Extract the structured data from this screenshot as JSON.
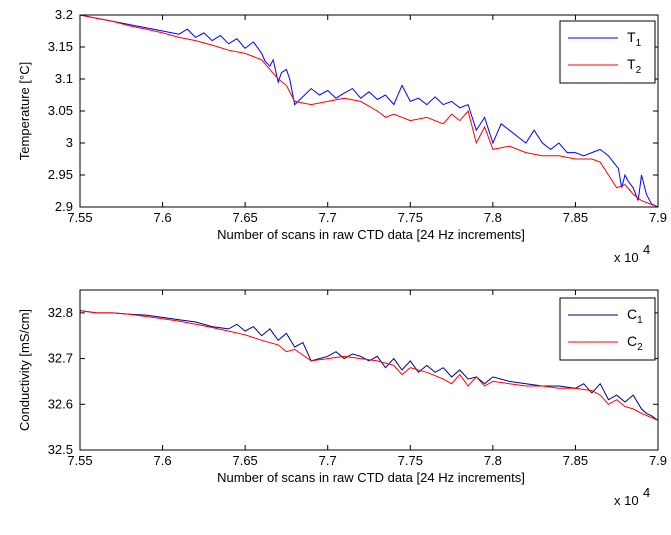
{
  "chart_data": [
    {
      "type": "line",
      "xlabel": "Number of scans in raw CTD data [24 Hz increments]",
      "ylabel": "Temperature [°C]",
      "x_multiplier_label": "x 10",
      "x_multiplier_exp": "4",
      "xlim": [
        7.55,
        7.9
      ],
      "ylim": [
        2.9,
        3.2
      ],
      "xticks": [
        "7.55",
        "7.6",
        "7.65",
        "7.7",
        "7.75",
        "7.8",
        "7.85",
        "7.9"
      ],
      "yticks": [
        "2.9",
        "2.95",
        "3",
        "3.05",
        "3.1",
        "3.15",
        "3.2"
      ],
      "legend_position": "top-right",
      "series": [
        {
          "name_main": "T",
          "name_sub": "1",
          "color": "#0000ff",
          "x": [
            7.55,
            7.56,
            7.57,
            7.58,
            7.59,
            7.6,
            7.61,
            7.615,
            7.62,
            7.625,
            7.63,
            7.635,
            7.64,
            7.645,
            7.65,
            7.655,
            7.66,
            7.662,
            7.665,
            7.667,
            7.67,
            7.672,
            7.675,
            7.677,
            7.68,
            7.69,
            7.695,
            7.7,
            7.705,
            7.71,
            7.715,
            7.72,
            7.725,
            7.73,
            7.735,
            7.74,
            7.745,
            7.75,
            7.755,
            7.76,
            7.765,
            7.77,
            7.775,
            7.78,
            7.785,
            7.79,
            7.795,
            7.8,
            7.805,
            7.81,
            7.815,
            7.82,
            7.825,
            7.83,
            7.835,
            7.84,
            7.845,
            7.85,
            7.855,
            7.86,
            7.865,
            7.87,
            7.873,
            7.876,
            7.878,
            7.88,
            7.882,
            7.885,
            7.888,
            7.89,
            7.893,
            7.896,
            7.9
          ],
          "y": [
            3.2,
            3.195,
            3.19,
            3.185,
            3.18,
            3.175,
            3.17,
            3.178,
            3.165,
            3.172,
            3.16,
            3.168,
            3.155,
            3.163,
            3.148,
            3.158,
            3.14,
            3.128,
            3.12,
            3.13,
            3.095,
            3.11,
            3.115,
            3.1,
            3.06,
            3.085,
            3.075,
            3.082,
            3.07,
            3.078,
            3.085,
            3.07,
            3.08,
            3.068,
            3.075,
            3.06,
            3.09,
            3.065,
            3.07,
            3.06,
            3.072,
            3.06,
            3.065,
            3.055,
            3.06,
            3.02,
            3.04,
            3.0,
            3.03,
            3.02,
            3.01,
            3.0,
            3.02,
            3.0,
            2.99,
            3.0,
            2.985,
            2.985,
            2.98,
            2.985,
            2.99,
            2.98,
            2.97,
            2.96,
            2.93,
            2.95,
            2.94,
            2.93,
            2.91,
            2.95,
            2.92,
            2.905,
            2.9
          ]
        },
        {
          "name_main": "T",
          "name_sub": "2",
          "color": "#ff0000",
          "x": [
            7.55,
            7.56,
            7.57,
            7.58,
            7.59,
            7.6,
            7.61,
            7.62,
            7.63,
            7.64,
            7.65,
            7.66,
            7.665,
            7.67,
            7.675,
            7.68,
            7.69,
            7.7,
            7.71,
            7.72,
            7.73,
            7.735,
            7.74,
            7.75,
            7.76,
            7.77,
            7.775,
            7.78,
            7.785,
            7.79,
            7.795,
            7.8,
            7.81,
            7.82,
            7.83,
            7.84,
            7.85,
            7.86,
            7.865,
            7.87,
            7.875,
            7.88,
            7.885,
            7.89,
            7.9
          ],
          "y": [
            3.2,
            3.195,
            3.19,
            3.183,
            3.178,
            3.172,
            3.165,
            3.16,
            3.153,
            3.145,
            3.14,
            3.13,
            3.115,
            3.1,
            3.09,
            3.065,
            3.06,
            3.065,
            3.07,
            3.065,
            3.05,
            3.04,
            3.045,
            3.035,
            3.04,
            3.03,
            3.045,
            3.035,
            3.05,
            3.0,
            3.025,
            2.99,
            2.995,
            2.985,
            2.98,
            2.98,
            2.975,
            2.975,
            2.97,
            2.95,
            2.93,
            2.935,
            2.92,
            2.91,
            2.9
          ]
        }
      ]
    },
    {
      "type": "line",
      "xlabel": "Number of scans in raw CTD data [24 Hz increments]",
      "ylabel": "Conductivity [mS/cm]",
      "x_multiplier_label": "x 10",
      "x_multiplier_exp": "4",
      "xlim": [
        7.55,
        7.9
      ],
      "ylim": [
        32.5,
        32.85
      ],
      "xticks": [
        "7.55",
        "7.6",
        "7.65",
        "7.7",
        "7.75",
        "7.8",
        "7.85",
        "7.9"
      ],
      "yticks": [
        "32.5",
        "32.6",
        "32.7",
        "32.8"
      ],
      "legend_position": "top-right",
      "series": [
        {
          "name_main": "C",
          "name_sub": "1",
          "color": "#00008b",
          "x": [
            7.55,
            7.56,
            7.57,
            7.58,
            7.59,
            7.6,
            7.61,
            7.62,
            7.63,
            7.64,
            7.645,
            7.65,
            7.655,
            7.66,
            7.665,
            7.67,
            7.675,
            7.68,
            7.685,
            7.69,
            7.7,
            7.705,
            7.71,
            7.715,
            7.72,
            7.725,
            7.73,
            7.735,
            7.74,
            7.745,
            7.75,
            7.755,
            7.76,
            7.765,
            7.77,
            7.775,
            7.78,
            7.785,
            7.79,
            7.795,
            7.8,
            7.81,
            7.82,
            7.83,
            7.84,
            7.85,
            7.855,
            7.86,
            7.865,
            7.87,
            7.875,
            7.88,
            7.885,
            7.89,
            7.893,
            7.896,
            7.9
          ],
          "y": [
            32.805,
            32.8,
            32.8,
            32.797,
            32.795,
            32.79,
            32.785,
            32.78,
            32.77,
            32.765,
            32.775,
            32.76,
            32.77,
            32.75,
            32.765,
            32.74,
            32.755,
            32.725,
            32.735,
            32.695,
            32.705,
            32.715,
            32.7,
            32.71,
            32.705,
            32.695,
            32.705,
            32.68,
            32.7,
            32.675,
            32.695,
            32.67,
            32.685,
            32.67,
            32.68,
            32.66,
            32.675,
            32.655,
            32.66,
            32.645,
            32.66,
            32.65,
            32.645,
            32.64,
            32.64,
            32.635,
            32.645,
            32.625,
            32.645,
            32.61,
            32.62,
            32.605,
            32.62,
            32.59,
            32.58,
            32.575,
            32.565
          ]
        },
        {
          "name_main": "C",
          "name_sub": "2",
          "color": "#ff0000",
          "x": [
            7.55,
            7.56,
            7.57,
            7.58,
            7.59,
            7.6,
            7.61,
            7.62,
            7.63,
            7.64,
            7.65,
            7.66,
            7.67,
            7.675,
            7.68,
            7.69,
            7.7,
            7.71,
            7.72,
            7.73,
            7.74,
            7.745,
            7.75,
            7.76,
            7.77,
            7.775,
            7.78,
            7.785,
            7.79,
            7.795,
            7.8,
            7.81,
            7.82,
            7.83,
            7.84,
            7.85,
            7.86,
            7.865,
            7.87,
            7.875,
            7.88,
            7.885,
            7.89,
            7.9
          ],
          "y": [
            32.805,
            32.8,
            32.8,
            32.797,
            32.792,
            32.787,
            32.782,
            32.775,
            32.768,
            32.76,
            32.752,
            32.74,
            32.73,
            32.715,
            32.72,
            32.695,
            32.7,
            32.705,
            32.7,
            32.695,
            32.685,
            32.665,
            32.68,
            32.67,
            32.655,
            32.645,
            32.665,
            32.64,
            32.66,
            32.64,
            32.65,
            32.645,
            32.64,
            32.64,
            32.635,
            32.635,
            32.63,
            32.62,
            32.6,
            32.61,
            32.595,
            32.59,
            32.58,
            32.565
          ]
        }
      ]
    }
  ]
}
